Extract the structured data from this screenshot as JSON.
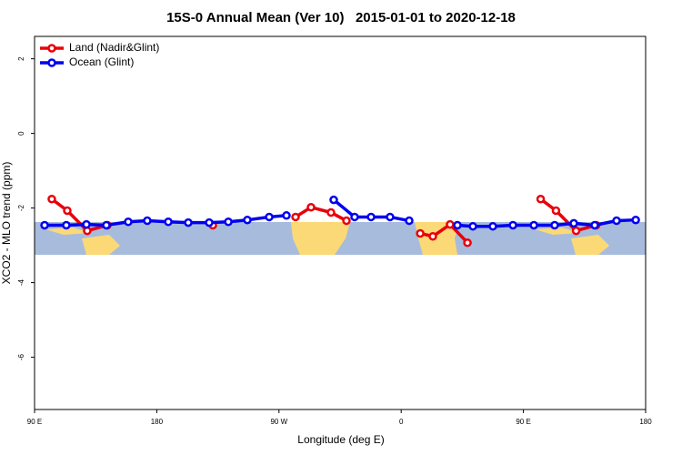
{
  "chart_data": {
    "type": "line",
    "title": "15S-0 Annual Mean (Ver 10)   2015-01-01 to 2020-12-18",
    "x_label": "Longitude (deg E)",
    "y_label": "XCO2 - MLO trend (ppm)",
    "xlim": [
      90,
      540
    ],
    "ylim": [
      -7.4,
      2.6
    ],
    "xticks": [
      {
        "value": 90,
        "label": "90 E"
      },
      180,
      {
        "value": 270,
        "label": "90 W"
      },
      {
        "value": 360,
        "label": "0"
      },
      {
        "value": 450,
        "label": "90 E"
      },
      {
        "value": 540,
        "label": "180"
      }
    ],
    "yticks": [
      2,
      0,
      -2,
      -4,
      -6
    ],
    "legend": "top-left",
    "series": [
      {
        "name": "Land (Nadir&Glint)",
        "color": "#e8000b",
        "x": [
          102.7,
          114.1,
          128.8,
          143.6,
          null,
          221.3,
          null,
          282.2,
          293.6,
          308.3,
          319.7,
          null,
          374,
          383.3,
          396,
          408.8,
          null,
          462.7,
          474,
          488.8,
          503.6
        ],
        "values": [
          -1.76,
          -2.07,
          -2.61,
          -2.46,
          null,
          -2.46,
          null,
          -2.24,
          -1.98,
          -2.12,
          -2.34,
          null,
          -2.68,
          -2.76,
          -2.44,
          -2.93,
          null,
          -1.76,
          -2.07,
          -2.61,
          -2.46
        ]
      },
      {
        "name": "Ocean (Glint)",
        "color": "#0000f0",
        "x": [
          97.4,
          113.4,
          128.2,
          142.9,
          159,
          173,
          188.5,
          203.2,
          218.6,
          232.7,
          246.7,
          262.8,
          275.5,
          null,
          310.3,
          325.7,
          337.8,
          351.8,
          365.9,
          null,
          401.4,
          412.8,
          427.5,
          442.3,
          457.7,
          473,
          487.1,
          502.5,
          518.6,
          532.7
        ],
        "values": [
          -2.46,
          -2.46,
          -2.44,
          -2.46,
          -2.37,
          -2.34,
          -2.37,
          -2.39,
          -2.39,
          -2.37,
          -2.32,
          -2.24,
          -2.2,
          null,
          -1.78,
          -2.24,
          -2.24,
          -2.24,
          -2.34,
          null,
          -2.46,
          -2.49,
          -2.49,
          -2.46,
          -2.46,
          -2.46,
          -2.41,
          -2.46,
          -2.34,
          -2.32
        ]
      }
    ]
  }
}
